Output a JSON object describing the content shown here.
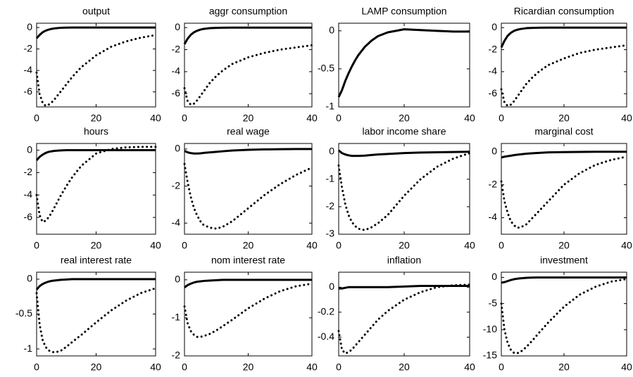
{
  "chart_data": [
    {
      "type": "line",
      "title": "output",
      "x": [
        0,
        1,
        2,
        3,
        4,
        5,
        6,
        8,
        10,
        12,
        15,
        20,
        25,
        30,
        35,
        40
      ],
      "xlim": [
        0,
        40
      ],
      "xticks": [
        0,
        20,
        40
      ],
      "ylim": [
        -7.4,
        0.4
      ],
      "yticks": [
        0,
        -2,
        -4,
        -6
      ],
      "series": [
        {
          "color": "#000000",
          "style": "solid",
          "values": [
            -1,
            -0.7,
            -0.45,
            -0.3,
            -0.2,
            -0.13,
            -0.08,
            -0.03,
            -0.01,
            0,
            0,
            0,
            0,
            0,
            0,
            0
          ]
        },
        {
          "color": "#000000",
          "style": "dotted",
          "values": [
            -4.2,
            -6.2,
            -7.0,
            -7.3,
            -7.2,
            -7.0,
            -6.7,
            -6.0,
            -5.3,
            -4.6,
            -3.7,
            -2.6,
            -1.8,
            -1.3,
            -0.95,
            -0.7
          ]
        }
      ]
    },
    {
      "type": "line",
      "title": "aggr consumption",
      "x": [
        0,
        1,
        2,
        3,
        4,
        5,
        6,
        8,
        10,
        12,
        15,
        20,
        25,
        30,
        35,
        40
      ],
      "xlim": [
        0,
        40
      ],
      "xticks": [
        0,
        20,
        40
      ],
      "ylim": [
        -7.2,
        0.4
      ],
      "yticks": [
        0,
        -2,
        -4,
        -6
      ],
      "series": [
        {
          "color": "#000000",
          "style": "solid",
          "values": [
            -1.5,
            -1.0,
            -0.65,
            -0.42,
            -0.28,
            -0.18,
            -0.12,
            -0.05,
            -0.02,
            -0.01,
            0,
            0,
            0,
            0,
            0,
            0
          ]
        },
        {
          "color": "#000000",
          "style": "dotted",
          "values": [
            -5.5,
            -6.7,
            -7.0,
            -6.9,
            -6.6,
            -6.2,
            -5.8,
            -5.0,
            -4.4,
            -3.9,
            -3.3,
            -2.7,
            -2.3,
            -2.0,
            -1.8,
            -1.6
          ]
        }
      ]
    },
    {
      "type": "line",
      "title": "LAMP consumption",
      "x": [
        0,
        1,
        2,
        3,
        4,
        5,
        6,
        8,
        10,
        12,
        15,
        20,
        25,
        30,
        35,
        40
      ],
      "xlim": [
        0,
        40
      ],
      "xticks": [
        0,
        20,
        40
      ],
      "ylim": [
        -1,
        0.1
      ],
      "yticks": [
        0,
        -0.5,
        -1
      ],
      "series": [
        {
          "color": "#000000",
          "style": "solid",
          "values": [
            -0.87,
            -0.78,
            -0.66,
            -0.56,
            -0.47,
            -0.39,
            -0.32,
            -0.21,
            -0.13,
            -0.07,
            -0.02,
            0.02,
            0.01,
            0,
            -0.01,
            -0.01
          ]
        }
      ]
    },
    {
      "type": "line",
      "title": "Ricardian consumption",
      "x": [
        0,
        1,
        2,
        3,
        4,
        5,
        6,
        8,
        10,
        12,
        15,
        20,
        25,
        30,
        35,
        40
      ],
      "xlim": [
        0,
        40
      ],
      "xticks": [
        0,
        20,
        40
      ],
      "ylim": [
        -7.2,
        0.4
      ],
      "yticks": [
        0,
        -2,
        -4,
        -6
      ],
      "series": [
        {
          "color": "#000000",
          "style": "solid",
          "values": [
            -1.8,
            -1.2,
            -0.75,
            -0.48,
            -0.3,
            -0.2,
            -0.13,
            -0.05,
            -0.02,
            -0.01,
            0,
            0,
            0,
            0,
            0,
            0
          ]
        },
        {
          "color": "#000000",
          "style": "dotted",
          "values": [
            -5.6,
            -6.8,
            -7.1,
            -7.0,
            -6.7,
            -6.3,
            -5.9,
            -5.1,
            -4.5,
            -4.0,
            -3.4,
            -2.8,
            -2.3,
            -2.0,
            -1.8,
            -1.6
          ]
        }
      ]
    },
    {
      "type": "line",
      "title": "hours",
      "x": [
        0,
        1,
        2,
        3,
        4,
        5,
        6,
        8,
        10,
        12,
        15,
        20,
        25,
        30,
        35,
        40
      ],
      "xlim": [
        0,
        40
      ],
      "xticks": [
        0,
        20,
        40
      ],
      "ylim": [
        -7.5,
        0.6
      ],
      "yticks": [
        0,
        -2,
        -4,
        -6
      ],
      "series": [
        {
          "color": "#000000",
          "style": "solid",
          "values": [
            -0.9,
            -0.6,
            -0.4,
            -0.25,
            -0.15,
            -0.1,
            -0.06,
            -0.02,
            0,
            0,
            0,
            0,
            0,
            0,
            0,
            0
          ]
        },
        {
          "color": "#000000",
          "style": "dotted",
          "values": [
            -4.0,
            -5.8,
            -6.4,
            -6.3,
            -6.0,
            -5.6,
            -5.1,
            -4.1,
            -3.2,
            -2.4,
            -1.4,
            -0.3,
            0.1,
            0.25,
            0.3,
            0.3
          ]
        }
      ]
    },
    {
      "type": "line",
      "title": "real wage",
      "x": [
        0,
        1,
        2,
        3,
        4,
        5,
        6,
        8,
        10,
        12,
        15,
        20,
        25,
        30,
        35,
        40
      ],
      "xlim": [
        0,
        40
      ],
      "xticks": [
        0,
        20,
        40
      ],
      "ylim": [
        -4.6,
        0.3
      ],
      "yticks": [
        0,
        -2,
        -4
      ],
      "series": [
        {
          "color": "#000000",
          "style": "solid",
          "values": [
            -0.1,
            -0.18,
            -0.22,
            -0.24,
            -0.24,
            -0.23,
            -0.21,
            -0.18,
            -0.15,
            -0.12,
            -0.08,
            -0.04,
            -0.02,
            -0.01,
            0,
            0
          ]
        },
        {
          "color": "#000000",
          "style": "dotted",
          "values": [
            -0.8,
            -1.8,
            -2.6,
            -3.2,
            -3.6,
            -3.9,
            -4.1,
            -4.25,
            -4.3,
            -4.2,
            -3.9,
            -3.2,
            -2.5,
            -1.9,
            -1.4,
            -1.0
          ]
        }
      ]
    },
    {
      "type": "line",
      "title": "labor income share",
      "x": [
        0,
        1,
        2,
        3,
        4,
        5,
        6,
        8,
        10,
        12,
        15,
        20,
        25,
        30,
        35,
        40
      ],
      "xlim": [
        0,
        40
      ],
      "xticks": [
        0,
        20,
        40
      ],
      "ylim": [
        -3,
        0.3
      ],
      "yticks": [
        0,
        -1,
        -2,
        -3
      ],
      "series": [
        {
          "color": "#000000",
          "style": "solid",
          "values": [
            0.05,
            -0.05,
            -0.1,
            -0.13,
            -0.15,
            -0.15,
            -0.15,
            -0.14,
            -0.12,
            -0.1,
            -0.08,
            -0.05,
            -0.03,
            -0.02,
            -0.01,
            0
          ]
        },
        {
          "color": "#000000",
          "style": "dotted",
          "values": [
            -0.5,
            -1.3,
            -1.9,
            -2.3,
            -2.55,
            -2.7,
            -2.8,
            -2.85,
            -2.75,
            -2.6,
            -2.3,
            -1.6,
            -1.0,
            -0.55,
            -0.25,
            -0.05
          ]
        }
      ]
    },
    {
      "type": "line",
      "title": "marginal cost",
      "x": [
        0,
        1,
        2,
        3,
        4,
        5,
        6,
        8,
        10,
        12,
        15,
        20,
        25,
        30,
        35,
        40
      ],
      "xlim": [
        0,
        40
      ],
      "xticks": [
        0,
        20,
        40
      ],
      "ylim": [
        -5.0,
        0.5
      ],
      "yticks": [
        0,
        -2,
        -4
      ],
      "series": [
        {
          "color": "#000000",
          "style": "solid",
          "values": [
            -0.35,
            -0.3,
            -0.27,
            -0.24,
            -0.21,
            -0.18,
            -0.16,
            -0.12,
            -0.09,
            -0.07,
            -0.04,
            -0.02,
            -0.01,
            0,
            0,
            0
          ]
        },
        {
          "color": "#000000",
          "style": "dotted",
          "values": [
            -1.8,
            -3.0,
            -3.7,
            -4.2,
            -4.45,
            -4.6,
            -4.6,
            -4.4,
            -4.0,
            -3.6,
            -3.0,
            -2.0,
            -1.3,
            -0.8,
            -0.5,
            -0.3
          ]
        }
      ]
    },
    {
      "type": "line",
      "title": "real interest rate",
      "x": [
        0,
        1,
        2,
        3,
        4,
        5,
        6,
        8,
        10,
        12,
        15,
        20,
        25,
        30,
        35,
        40
      ],
      "xlim": [
        0,
        40
      ],
      "xticks": [
        0,
        20,
        40
      ],
      "ylim": [
        -1.1,
        0.1
      ],
      "yticks": [
        0,
        -0.5,
        -1
      ],
      "series": [
        {
          "color": "#000000",
          "style": "solid",
          "values": [
            -0.15,
            -0.1,
            -0.07,
            -0.05,
            -0.035,
            -0.025,
            -0.02,
            -0.01,
            -0.005,
            0,
            0,
            0,
            0,
            0,
            0,
            0
          ]
        },
        {
          "color": "#000000",
          "style": "dotted",
          "values": [
            -0.2,
            -0.65,
            -0.87,
            -0.97,
            -1.02,
            -1.04,
            -1.05,
            -1.03,
            -0.97,
            -0.9,
            -0.8,
            -0.62,
            -0.45,
            -0.31,
            -0.2,
            -0.13
          ]
        }
      ]
    },
    {
      "type": "line",
      "title": "nom interest rate",
      "x": [
        0,
        1,
        2,
        3,
        4,
        5,
        6,
        8,
        10,
        12,
        15,
        20,
        25,
        30,
        35,
        40
      ],
      "xlim": [
        0,
        40
      ],
      "xticks": [
        0,
        20,
        40
      ],
      "ylim": [
        -2,
        0.2
      ],
      "yticks": [
        0,
        -1,
        -2
      ],
      "series": [
        {
          "color": "#000000",
          "style": "solid",
          "values": [
            -0.2,
            -0.14,
            -0.1,
            -0.07,
            -0.05,
            -0.04,
            -0.03,
            -0.02,
            -0.01,
            0,
            0,
            0,
            0,
            0,
            0,
            0
          ]
        },
        {
          "color": "#000000",
          "style": "dotted",
          "values": [
            -0.7,
            -1.15,
            -1.35,
            -1.45,
            -1.5,
            -1.5,
            -1.48,
            -1.42,
            -1.33,
            -1.22,
            -1.05,
            -0.75,
            -0.5,
            -0.3,
            -0.17,
            -0.1
          ]
        }
      ]
    },
    {
      "type": "line",
      "title": "inflation",
      "x": [
        0,
        1,
        2,
        3,
        4,
        5,
        6,
        8,
        10,
        12,
        15,
        20,
        25,
        30,
        35,
        40
      ],
      "xlim": [
        0,
        40
      ],
      "xticks": [
        0,
        20,
        40
      ],
      "ylim": [
        -0.55,
        0.12
      ],
      "yticks": [
        0,
        -0.2,
        -0.4
      ],
      "series": [
        {
          "color": "#000000",
          "style": "solid",
          "values": [
            -0.01,
            -0.01,
            -0.005,
            0,
            0,
            0,
            0,
            0,
            0,
            0,
            0,
            0.005,
            0.01,
            0.01,
            0.01,
            0.01
          ]
        },
        {
          "color": "#000000",
          "style": "dotted",
          "values": [
            -0.35,
            -0.5,
            -0.53,
            -0.52,
            -0.5,
            -0.47,
            -0.44,
            -0.38,
            -0.32,
            -0.26,
            -0.19,
            -0.1,
            -0.04,
            0,
            0.015,
            0.02
          ]
        }
      ]
    },
    {
      "type": "line",
      "title": "investment",
      "x": [
        0,
        1,
        2,
        3,
        4,
        5,
        6,
        8,
        10,
        12,
        15,
        20,
        25,
        30,
        35,
        40
      ],
      "xlim": [
        0,
        40
      ],
      "xticks": [
        0,
        20,
        40
      ],
      "ylim": [
        -15,
        1
      ],
      "yticks": [
        0,
        -5,
        -10,
        -15
      ],
      "series": [
        {
          "color": "#000000",
          "style": "solid",
          "values": [
            -1,
            -0.9,
            -0.7,
            -0.5,
            -0.35,
            -0.25,
            -0.18,
            -0.08,
            -0.03,
            0,
            0,
            0,
            0,
            0,
            0,
            0
          ]
        },
        {
          "color": "#000000",
          "style": "dotted",
          "values": [
            -5,
            -10,
            -12.5,
            -13.8,
            -14.4,
            -14.5,
            -14.3,
            -13.3,
            -12,
            -10.6,
            -8.6,
            -5.6,
            -3.3,
            -1.8,
            -0.8,
            -0.3
          ]
        }
      ]
    }
  ]
}
